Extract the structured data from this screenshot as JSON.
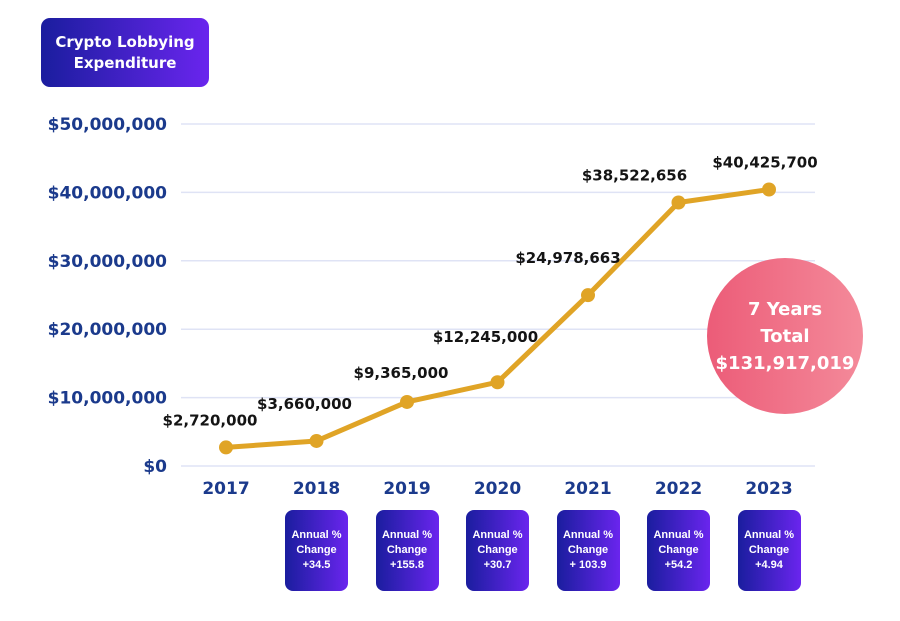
{
  "title_box": {
    "line1": "Crypto Lobbying",
    "line2": "Expenditure"
  },
  "total": {
    "line1": "7 Years",
    "line2": "Total",
    "line3": "$131,917,019"
  },
  "annual_change": [
    {
      "label1": "Annual %",
      "label2": "Change",
      "value": "+34.5"
    },
    {
      "label1": "Annual %",
      "label2": "Change",
      "value": "+155.8"
    },
    {
      "label1": "Annual %",
      "label2": "Change",
      "value": "+30.7"
    },
    {
      "label1": "Annual %",
      "label2": "Change",
      "value": "+ 103.9"
    },
    {
      "label1": "Annual %",
      "label2": "Change",
      "value": "+54.2"
    },
    {
      "label1": "Annual %",
      "label2": "Change",
      "value": "+4.94"
    }
  ],
  "colors": {
    "line": "#e0a426",
    "axis_text": "#1b3a8c",
    "box_start": "#1a1d9e",
    "box_end": "#6a25ee",
    "circle_start": "#ec5c78",
    "circle_end": "#f48a9a"
  },
  "chart_data": {
    "type": "line",
    "title": "Crypto Lobbying Expenditure",
    "xlabel": "",
    "ylabel": "",
    "categories": [
      "2017",
      "2018",
      "2019",
      "2020",
      "2021",
      "2022",
      "2023"
    ],
    "series": [
      {
        "name": "Crypto Lobbying Expenditure",
        "values": [
          2720000,
          3660000,
          9365000,
          12245000,
          24978663,
          38522656,
          40425700
        ]
      }
    ],
    "data_labels": [
      "$2,720,000",
      "$3,660,000",
      "$9,365,000",
      "$12,245,000",
      "$24,978,663",
      "$38,522,656",
      "$40,425,700"
    ],
    "ylim": [
      0,
      50000000
    ],
    "yticks": [
      0,
      10000000,
      20000000,
      30000000,
      40000000,
      50000000
    ],
    "ytick_labels": [
      "$0",
      "$10,000,000",
      "$20,000,000",
      "$30,000,000",
      "$40,000,000",
      "$50,000,000"
    ],
    "grid": true,
    "legend": "none"
  }
}
